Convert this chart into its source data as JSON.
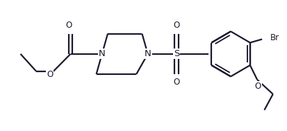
{
  "bg_color": "#ffffff",
  "line_color": "#1a1a2e",
  "line_width": 1.6,
  "font_size": 8.5,
  "figsize": [
    4.13,
    1.89
  ],
  "dpi": 100,
  "xlim": [
    0,
    10
  ],
  "ylim": [
    0,
    4.5
  ]
}
